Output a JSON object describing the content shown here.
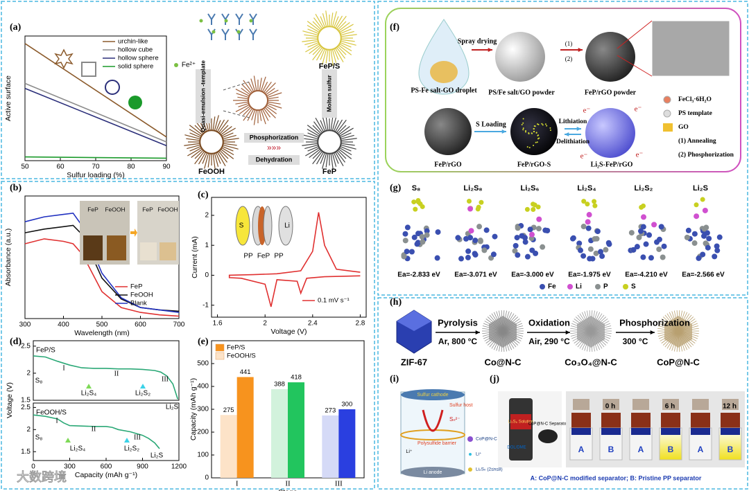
{
  "chart_data": [
    {
      "type": "line",
      "xlabel": "Sulfur loading (%)",
      "ylabel": "Active surface",
      "x": [
        50,
        90
      ],
      "xlim": [
        50,
        90
      ],
      "xticks": [
        50,
        60,
        70,
        80,
        90
      ],
      "ylim": [
        0,
        10
      ],
      "legend": "upper right",
      "series": [
        {
          "name": "urchin-like",
          "color": "#8b5a2b",
          "values": [
            9.4,
            1.9
          ]
        },
        {
          "name": "hollow cube",
          "color": "#8c8c8c",
          "values": [
            6.2,
            1.5
          ]
        },
        {
          "name": "hollow sphere",
          "color": "#2b2f7a",
          "values": [
            5.8,
            1.2
          ]
        },
        {
          "name": "solid sphere",
          "color": "#1a9a2a",
          "values": [
            0.3,
            0.2
          ]
        }
      ]
    },
    {
      "type": "line",
      "xlabel": "Wavelength (nm)",
      "ylabel": "Absorbance (a.u.)",
      "x": [
        300,
        350,
        400,
        425,
        450,
        500,
        550,
        600,
        650,
        700
      ],
      "xlim": [
        300,
        700
      ],
      "xticks": [
        300,
        400,
        500,
        600,
        700
      ],
      "ylim": [
        0,
        10
      ],
      "legend": "lower right",
      "series": [
        {
          "name": "FeP",
          "color": "#e03030",
          "values": [
            6.1,
            6.5,
            6.3,
            6.1,
            5.2,
            2.2,
            0.9,
            0.5,
            0.3,
            0.2
          ]
        },
        {
          "name": "FeOOH",
          "color": "#111111",
          "values": [
            7.0,
            7.3,
            7.5,
            7.6,
            6.8,
            3.3,
            1.6,
            0.9,
            0.7,
            0.6
          ]
        },
        {
          "name": "Blank",
          "color": "#2030c0",
          "values": [
            7.9,
            8.3,
            8.5,
            8.6,
            7.5,
            3.7,
            1.7,
            0.9,
            0.7,
            0.5
          ]
        }
      ]
    },
    {
      "type": "line",
      "xlabel": "Voltage (V)",
      "ylabel": "Current (mA)",
      "x": [
        2.8,
        2.5,
        2.35,
        2.3,
        2.27,
        2.1,
        2.05,
        2.0,
        1.8,
        1.7,
        1.7,
        1.9,
        2.1,
        2.3,
        2.4,
        2.45,
        2.5,
        2.6,
        2.8
      ],
      "xlim": [
        1.55,
        2.85
      ],
      "xticks": [
        1.6,
        2.0,
        2.4,
        2.8
      ],
      "ylim": [
        -1.4,
        2.6
      ],
      "yticks": [
        -1,
        0,
        1,
        2
      ],
      "legend": "lower right",
      "series": [
        {
          "name": "0.1 mV s⁻¹",
          "color": "#e03030",
          "values": [
            -0.02,
            -0.05,
            -0.1,
            -0.6,
            -0.2,
            -0.15,
            -1.05,
            -0.3,
            -0.1,
            -0.08,
            0.0,
            0.02,
            0.05,
            0.15,
            0.8,
            2.1,
            1.0,
            0.2,
            0.1
          ]
        }
      ],
      "inset_labels": [
        "S",
        "Li",
        "PP",
        "FeP",
        "PP"
      ]
    },
    {
      "type": "line",
      "ylabel": "Voltage (V)",
      "title": "FeP/S",
      "x": [
        0,
        100,
        200,
        300,
        400,
        500,
        600,
        700,
        800,
        900,
        1000,
        1050,
        1100,
        1150,
        1190
      ],
      "xlim": [
        0,
        1200
      ],
      "ylim": [
        1.5,
        2.6
      ],
      "yticks": [
        1.5,
        2.0,
        2.5
      ],
      "series": [
        {
          "name": "FeP/S",
          "color": "#2aa876",
          "values": [
            2.32,
            2.3,
            2.22,
            2.15,
            2.1,
            2.09,
            2.09,
            2.08,
            2.08,
            2.07,
            2.05,
            2.02,
            1.95,
            1.8,
            1.52
          ]
        }
      ],
      "annotations": [
        "S₈",
        "I",
        "II",
        "III",
        "Li₂S₄",
        "Li₂S₂",
        "Li₂S"
      ]
    },
    {
      "type": "line",
      "xlabel": "Capacity (mAh g⁻¹)",
      "title": "FeOOH/S",
      "x": [
        0,
        100,
        200,
        250,
        300,
        400,
        500,
        600,
        650,
        700,
        800,
        900,
        950,
        1000,
        1040
      ],
      "xlim": [
        0,
        1200
      ],
      "xticks": [
        0,
        300,
        600,
        900,
        1200
      ],
      "ylim": [
        1.3,
        2.6
      ],
      "yticks": [
        1.5,
        2.0,
        2.5
      ],
      "series": [
        {
          "name": "FeOOH/S",
          "color": "#2aa876",
          "values": [
            2.33,
            2.3,
            2.24,
            2.15,
            2.09,
            2.08,
            2.07,
            2.07,
            2.05,
            2.0,
            1.95,
            1.87,
            1.8,
            1.7,
            1.57
          ]
        }
      ],
      "annotations": [
        "S₈",
        "I",
        "II",
        "III",
        "Li₂S₄",
        "Li₂S₂",
        "Li₂S"
      ]
    },
    {
      "type": "bar",
      "xlabel": "Stage",
      "ylabel": "Capacity (mAh g⁻¹)",
      "categories": [
        "I",
        "II",
        "III"
      ],
      "ylim": [
        0,
        600
      ],
      "yticks": [
        0,
        100,
        200,
        300,
        400,
        500
      ],
      "legend": "upper left",
      "series": [
        {
          "name": "FeP/S",
          "colors": [
            "#f7931e",
            "#22c55e",
            "#2a3fe0"
          ],
          "values": [
            441,
            418,
            300
          ]
        },
        {
          "name": "FeOOH/S",
          "colors": [
            "#fde3c8",
            "#d2f2dc",
            "#d5daf7"
          ],
          "values": [
            275,
            388,
            273
          ]
        }
      ]
    }
  ],
  "panels": [
    "(a)",
    "(b)",
    "(c)",
    "(d)",
    "(e)",
    "(f)",
    "(g)",
    "(h)",
    "(i)",
    "(j)"
  ],
  "a_diagram": {
    "ion": "Fe²⁺",
    "route": "Quasi-emulsion -template",
    "FeOOH": "FeOOH",
    "step1": "Phosphorization",
    "step2": "Dehydration",
    "FeP": "FeP",
    "melt": "Molten sulfur",
    "FeP_S": "FeP/S"
  },
  "b_inset": [
    "FeP",
    "FeOOH",
    "FeP",
    "FeOOH"
  ],
  "f": {
    "spray": "Spray drying",
    "s1": "(1)",
    "s2": "(2)",
    "droplet": "PS-Fe salt-GO droplet",
    "powder": "PS/Fe salt/GO powder",
    "fep_powder": "FeP/rGO powder",
    "key": [
      "FeCl₃·6H₂O",
      "PS template",
      "GO",
      "(1) Annealing",
      "(2) Phosphorization"
    ],
    "fep": "FeP/rGO",
    "sload": "S Loading",
    "feps": "FeP/rGO-S",
    "lith": "Lithiation",
    "delith": "Delithiation",
    "li2s": "Li₂S-FeP/rGO",
    "e": "e⁻"
  },
  "g": {
    "species": [
      "S₈",
      "Li₂S₈",
      "Li₂S₆",
      "Li₂S₄",
      "Li₂S₂",
      "Li₂S"
    ],
    "energies": [
      "Ea=-2.833 eV",
      "Ea=-3.071 eV",
      "Ea=-3.000 eV",
      "Ea=-1.975 eV",
      "Ea=-4.210 eV",
      "Ea=-2.566 eV"
    ],
    "legend": [
      "Fe",
      "Li",
      "P",
      "S"
    ]
  },
  "h": {
    "steps": [
      "Pyrolysis",
      "Oxidation",
      "Phosphorization"
    ],
    "conditions": [
      "Ar, 800 °C",
      "Air, 290 °C",
      "300 °C"
    ],
    "products": [
      "ZIF-67",
      "Co@N-C",
      "Co₃O₄@N-C",
      "CoP@N-C"
    ]
  },
  "i": {
    "cathode": "Sulfur cathode",
    "host": "Sulfur host",
    "sn": "Sₙ²⁻",
    "barrier": "Polysulfide barrier",
    "li": "Li⁺",
    "anode": "Li anode",
    "key": [
      "CoP@N-C",
      "Li⁺",
      "Li₂Sₙ (2≤n≤8)"
    ]
  },
  "j": {
    "solution": "Li₂S₆ Solution",
    "separator": "CoP@N-C Separator",
    "solvent": "DOL/DME",
    "times": [
      "0 h",
      "6 h",
      "12 h"
    ],
    "vials": [
      "A",
      "B",
      "A",
      "B",
      "A",
      "B"
    ],
    "caption": "A: CoP@N-C modified separator; B: Pristine PP separator"
  },
  "watermark": "大数跨境"
}
